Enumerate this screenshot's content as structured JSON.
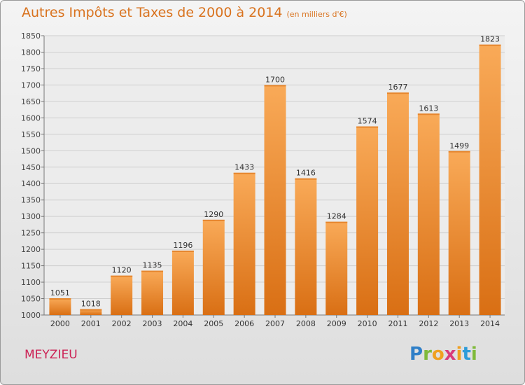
{
  "header": {
    "title": "Autres Impôts et Taxes de 2000 à 2014",
    "unit": "(en milliers d'€)"
  },
  "footer": {
    "city": "MEYZIEU",
    "brand": [
      "P",
      "r",
      "o",
      "x",
      "i",
      "t",
      "i"
    ],
    "brand_colors": [
      "#2e7fc8",
      "#7fba3a",
      "#f0a020",
      "#d93b7a",
      "#f0a020",
      "#2e9cd8",
      "#7fba3a"
    ]
  },
  "colors": {
    "bar": "#f0922e",
    "bar_light": "#f9aa58",
    "bar_dark": "#d96f14",
    "accent": "#d9731f"
  },
  "chart_data": {
    "type": "bar",
    "categories": [
      "2000",
      "2001",
      "2002",
      "2003",
      "2004",
      "2005",
      "2006",
      "2007",
      "2008",
      "2009",
      "2010",
      "2011",
      "2012",
      "2013",
      "2014"
    ],
    "values": [
      1051,
      1018,
      1120,
      1135,
      1196,
      1290,
      1433,
      1700,
      1416,
      1284,
      1574,
      1677,
      1613,
      1499,
      1823
    ],
    "ylim": [
      1000,
      1850
    ],
    "yticks": [
      1000,
      1050,
      1100,
      1150,
      1200,
      1250,
      1300,
      1350,
      1400,
      1450,
      1500,
      1550,
      1600,
      1650,
      1700,
      1750,
      1800,
      1850
    ],
    "grid": true
  }
}
